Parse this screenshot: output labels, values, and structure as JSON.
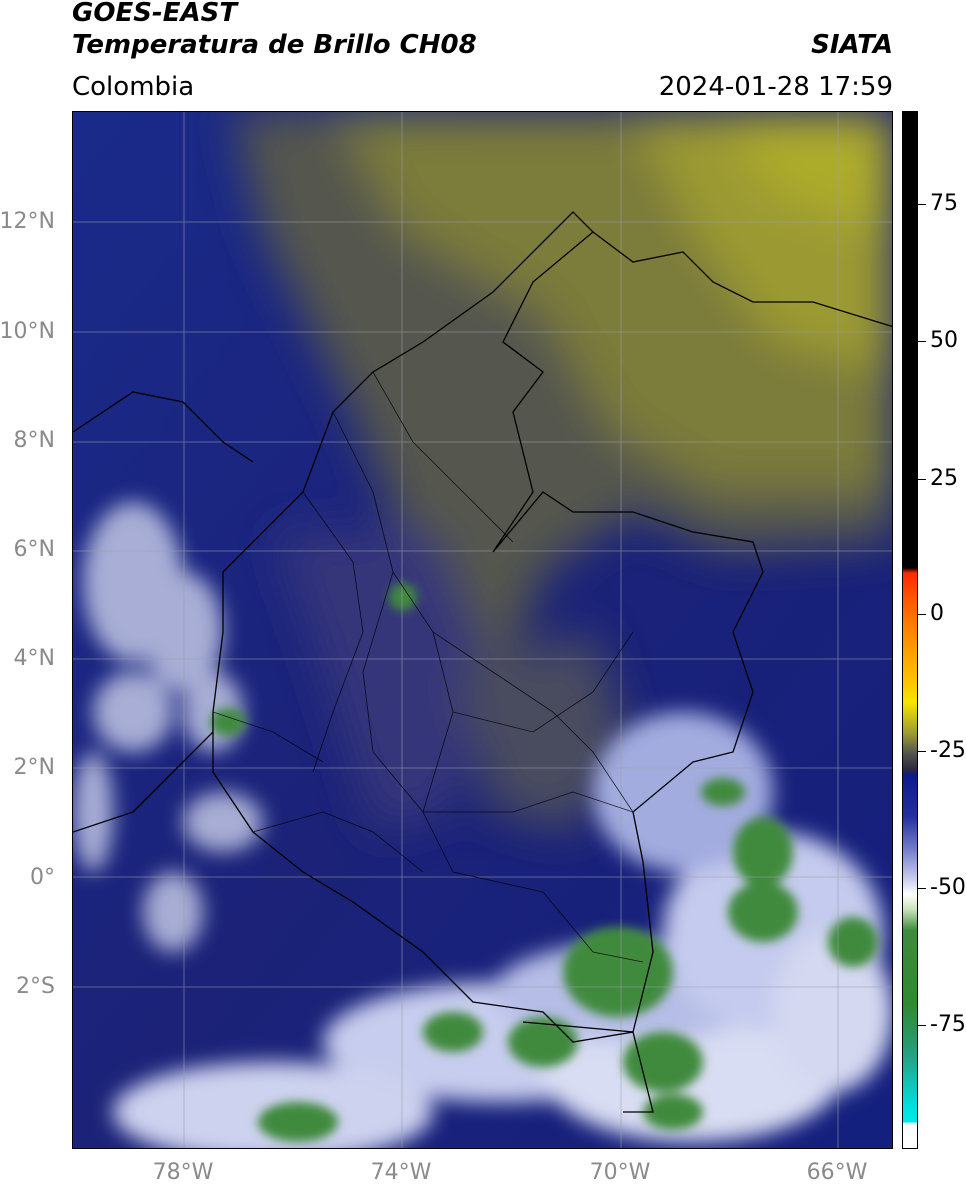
{
  "header": {
    "satellite": "GOES-EAST",
    "product": "Temperatura de Brillo CH08",
    "region": "Colombia",
    "organization": "SIATA",
    "datetime": "2024-01-28 17:59"
  },
  "map": {
    "lat_labels": [
      "12°N",
      "10°N",
      "8°N",
      "6°N",
      "4°N",
      "2°N",
      "0°",
      "2°S"
    ],
    "lon_labels": [
      "78°W",
      "74°W",
      "70°W",
      "66°W"
    ],
    "gridline_color": "#9aa0a8",
    "coastline_color": "#000000"
  },
  "colorbar": {
    "labels": [
      "75",
      "50",
      "25",
      "0",
      "-25",
      "-50",
      "-75"
    ],
    "colors": {
      "hot": "#000000",
      "warm_red": "#ff2a00",
      "yellow": "#f5e600",
      "olive": "#a7a52a",
      "navy": "#0e1a8c",
      "white": "#ffffff",
      "green": "#2f8a2f",
      "cyan": "#00e0e0"
    }
  }
}
